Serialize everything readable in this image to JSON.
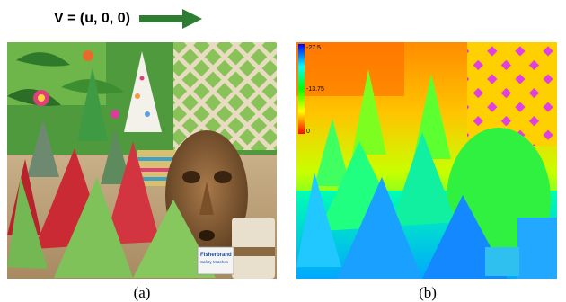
{
  "velocity": {
    "label": "V = (u, 0, 0)",
    "arrow_color": "#2e7d32",
    "arrow_icon": "right-arrow-icon"
  },
  "panels": [
    {
      "id": "a",
      "caption": "(a)",
      "content": "stereo scene photo: party cones, tribal mask, lattice, matchbox"
    },
    {
      "id": "b",
      "caption": "(b)",
      "content": "color-coded disparity map with colorbar"
    }
  ],
  "matchbox": {
    "brand": "Fisherbrand",
    "line1": "Safety Matches"
  },
  "colorbar": {
    "ticks": [
      "-27.5",
      "-13.75",
      "0"
    ],
    "colors": [
      "#0000ff",
      "#00ffff",
      "#00ff00",
      "#ffff00",
      "#ff0000"
    ]
  }
}
